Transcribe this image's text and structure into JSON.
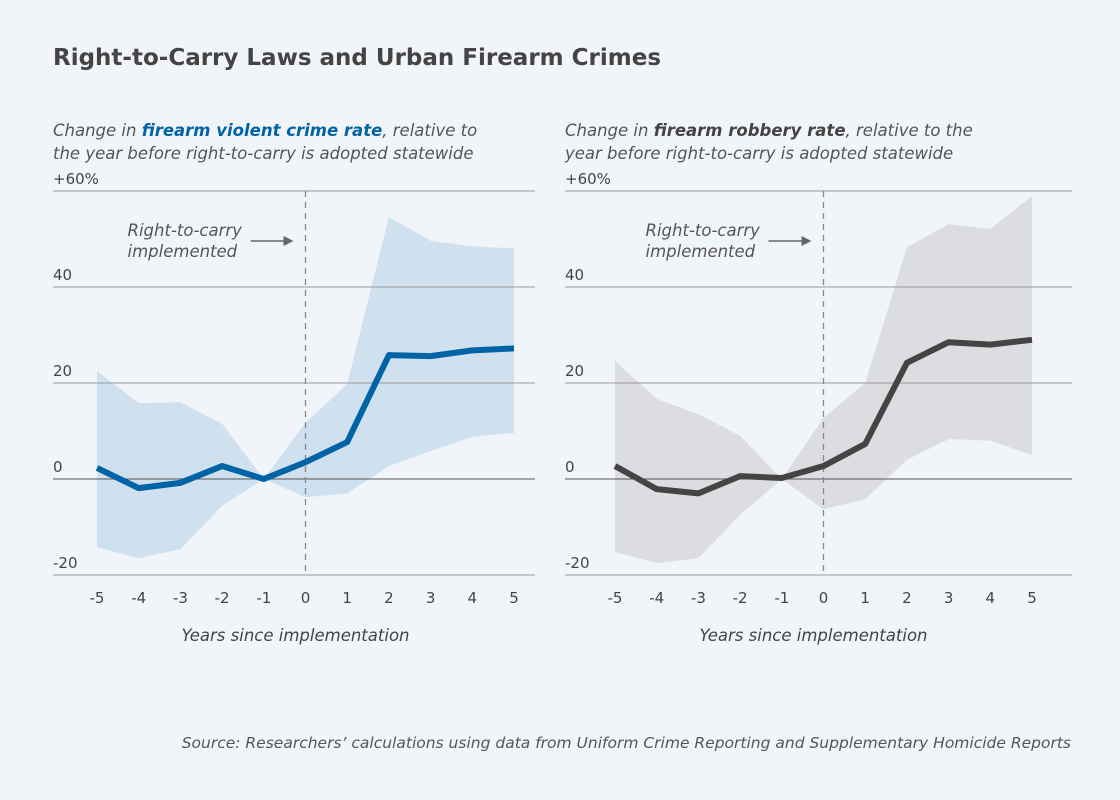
{
  "title": "Right-to-Carry Laws and Urban Firearm Crimes",
  "source": "Source: Researchers’ calculations using data from Uniform Crime Reporting and Supplementary Homicide Reports",
  "chart_data": [
    {
      "type": "line",
      "subtitle_pre": "Change in ",
      "subtitle_bold": "firearm violent crime rate",
      "subtitle_post": ", relative to",
      "subtitle_line2": "the year before right-to-carry is adopted statewide",
      "xlabel": "Years since implementation",
      "ylabel": "",
      "x": [
        -5,
        -4,
        -3,
        -2,
        -1,
        0,
        1,
        2,
        3,
        4,
        5
      ],
      "xtick_labels": [
        "-5",
        "-4",
        "-3",
        "-2",
        "-1",
        "0",
        "1",
        "2",
        "3",
        "4",
        "5"
      ],
      "ylim": [
        -20,
        60
      ],
      "ytick_labels": [
        "-20",
        "0",
        "20",
        "40",
        "+60%"
      ],
      "yticks": [
        -20,
        0,
        20,
        40,
        60
      ],
      "series": [
        {
          "name": "Estimate",
          "values": [
            2.3,
            -1.9,
            -0.8,
            2.7,
            0,
            3.5,
            7.7,
            25.8,
            25.6,
            26.8,
            27.2
          ]
        },
        {
          "name": "Upper bound",
          "values": [
            22.5,
            15.8,
            16,
            11.5,
            0,
            11.7,
            19.8,
            54.6,
            49.6,
            48.5,
            48
          ]
        },
        {
          "name": "Lower bound",
          "values": [
            -14.2,
            -16.5,
            -14.6,
            -5.6,
            0,
            -3.8,
            -3,
            2.7,
            5.8,
            8.8,
            9.6
          ]
        }
      ],
      "annotation": [
        "Right-to-carry",
        "implemented"
      ],
      "line_color": "#0063a6",
      "band_color": "#cfe0ef",
      "subtitle_color": "#0063a6"
    },
    {
      "type": "line",
      "subtitle_pre": "Change in ",
      "subtitle_bold": "firearm robbery rate",
      "subtitle_post": ", relative to the",
      "subtitle_line2": "year before right-to-carry is adopted statewide",
      "xlabel": "Years since implementation",
      "ylabel": "",
      "x": [
        -5,
        -4,
        -3,
        -2,
        -1,
        0,
        1,
        2,
        3,
        4,
        5
      ],
      "xtick_labels": [
        "-5",
        "-4",
        "-3",
        "-2",
        "-1",
        "0",
        "1",
        "2",
        "3",
        "4",
        "5"
      ],
      "ylim": [
        -20,
        60
      ],
      "ytick_labels": [
        "-20",
        "0",
        "20",
        "40",
        "+60%"
      ],
      "yticks": [
        -20,
        0,
        20,
        40,
        60
      ],
      "series": [
        {
          "name": "Estimate",
          "values": [
            2.7,
            -2.1,
            -3,
            0.6,
            0.2,
            2.7,
            7.3,
            24.2,
            28.5,
            28,
            29
          ]
        },
        {
          "name": "Upper bound",
          "values": [
            24.6,
            16.7,
            13.5,
            9,
            0,
            12.7,
            20,
            48.3,
            53.1,
            52.1,
            59
          ]
        },
        {
          "name": "Lower bound",
          "values": [
            -15.2,
            -17.5,
            -16.5,
            -7.5,
            0,
            -6.3,
            -4.2,
            4,
            8.3,
            8,
            5
          ]
        }
      ],
      "annotation": [
        "Right-to-carry",
        "implemented"
      ],
      "line_color": "#444444",
      "band_color": "#dcdde0",
      "subtitle_color": "#444444"
    }
  ]
}
